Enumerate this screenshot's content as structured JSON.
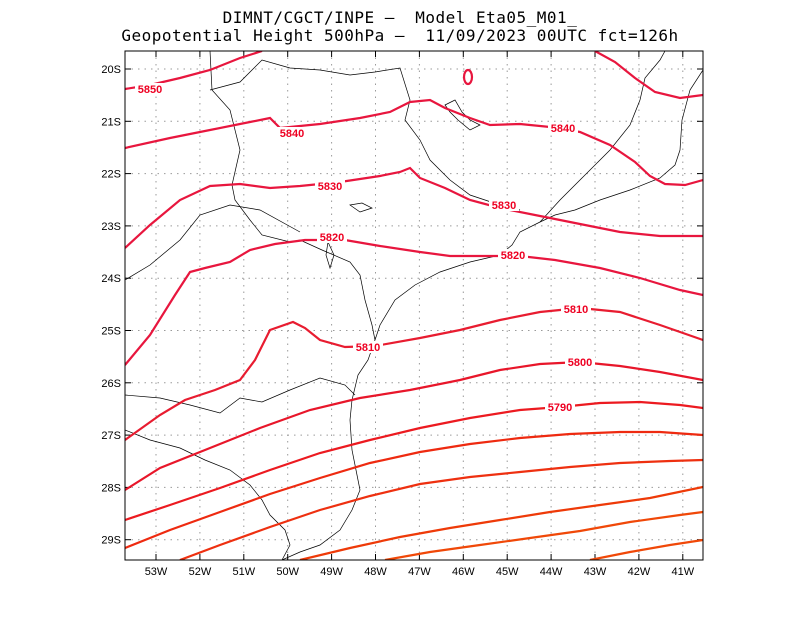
{
  "title": {
    "line1": "DIMNT/CGCT/INPE –  Model Eta05_M01_",
    "line2": "Geopotential Height 500hPa –  11/09/2023 00UTC fct=126h"
  },
  "axes": {
    "lat_labels": [
      "20S",
      "21S",
      "22S",
      "23S",
      "24S",
      "25S",
      "26S",
      "27S",
      "28S",
      "29S"
    ],
    "lon_labels": [
      "53W",
      "52W",
      "51W",
      "50W",
      "49W",
      "48W",
      "47W",
      "46W",
      "45W",
      "44W",
      "43W",
      "42W",
      "41W"
    ]
  },
  "contours": [
    {
      "value": "5850",
      "color": "#e8163e"
    },
    {
      "value": "5840",
      "color": "#e8163e"
    },
    {
      "value": "5830",
      "color": "#e8163e"
    },
    {
      "value": "5820",
      "color": "#e8163e"
    },
    {
      "value": "5810",
      "color": "#e81c30"
    },
    {
      "value": "5800",
      "color": "#e8162a"
    },
    {
      "value": "5790",
      "color": "#ec1a20"
    },
    {
      "value": "",
      "color": "#ee2a10"
    },
    {
      "value": "",
      "color": "#ee3010"
    },
    {
      "value": "",
      "color": "#ee3a08"
    },
    {
      "value": "",
      "color": "#f04808"
    }
  ],
  "colors": {
    "grid": "#9a9a9a",
    "coast": "#000000",
    "contour_hi": "#e8163e",
    "contour_lo": "#f04808"
  }
}
